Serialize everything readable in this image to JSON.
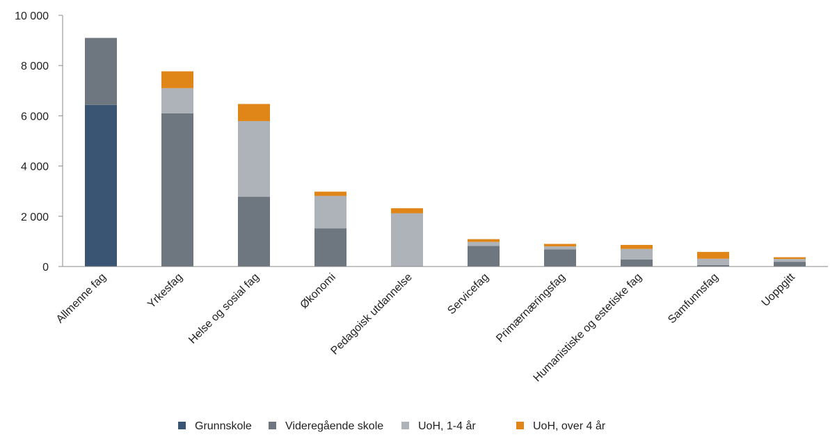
{
  "chart_data": {
    "type": "bar",
    "stacked": true,
    "title": "",
    "xlabel": "",
    "ylabel": "",
    "ylim": [
      0,
      10000
    ],
    "yticks": [
      0,
      2000,
      4000,
      6000,
      8000,
      10000
    ],
    "ytick_labels": [
      "0",
      "2 000",
      "4 000",
      "6 000",
      "8 000",
      "10 000"
    ],
    "grid": false,
    "legend_position": "bottom",
    "categories": [
      "Allmenne fag",
      "Yrkesfag",
      "Helse og sosial fag",
      "Økonomi",
      "Pedagoisk utdannelse",
      "Servicefag",
      "Primærnæringsfag",
      "Humanistiske og estetiske fag",
      "Samfunnsfag",
      "Uoppgitt"
    ],
    "series": [
      {
        "name": "Grunnskole",
        "color": "#3a5574",
        "values": [
          6430,
          0,
          0,
          0,
          0,
          0,
          0,
          0,
          0,
          0
        ]
      },
      {
        "name": "Videregående skole",
        "color": "#6e7780",
        "values": [
          2670,
          6100,
          2780,
          1520,
          0,
          820,
          680,
          280,
          60,
          190
        ]
      },
      {
        "name": "UoH, 1-4 år",
        "color": "#adb3b8",
        "values": [
          0,
          1000,
          3010,
          1290,
          2120,
          160,
          120,
          420,
          250,
          110
        ]
      },
      {
        "name": "UoH, over 4 år",
        "color": "#e08518",
        "values": [
          0,
          670,
          680,
          170,
          200,
          110,
          100,
          160,
          270,
          70
        ]
      }
    ]
  }
}
